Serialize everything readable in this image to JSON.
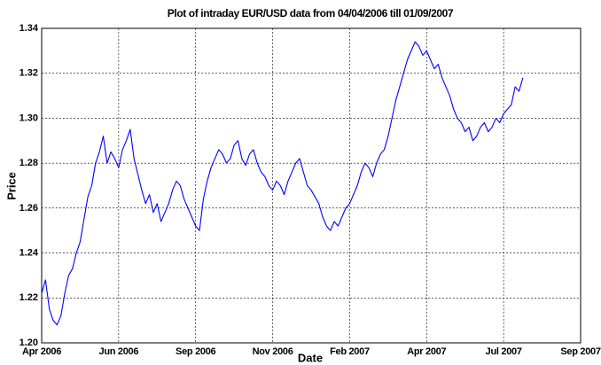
{
  "chart_data": {
    "type": "line",
    "title": "Plot of intraday EUR/USD data from 04/04/2006 till 01/09/2007",
    "x_label": "Date",
    "y_label": "Price",
    "categories": [
      "Apr 2006",
      null,
      null,
      null,
      null,
      null,
      null,
      null,
      null,
      null,
      null,
      null,
      null,
      null,
      null,
      null,
      null,
      null,
      null,
      null,
      "Jun 2006",
      null,
      null,
      null,
      null,
      null,
      null,
      null,
      null,
      null,
      null,
      null,
      null,
      null,
      null,
      null,
      null,
      null,
      null,
      null,
      "Sep 2006",
      null,
      null,
      null,
      null,
      null,
      null,
      null,
      null,
      null,
      null,
      null,
      null,
      null,
      null,
      null,
      null,
      null,
      null,
      null,
      "Nov 2006",
      null,
      null,
      null,
      null,
      null,
      null,
      null,
      null,
      null,
      null,
      null,
      null,
      null,
      null,
      null,
      null,
      null,
      null,
      null,
      "Feb 2007",
      null,
      null,
      null,
      null,
      null,
      null,
      null,
      null,
      null,
      null,
      null,
      null,
      null,
      null,
      null,
      null,
      null,
      null,
      null,
      "Apr 2007",
      null,
      null,
      null,
      null,
      null,
      null,
      null,
      null,
      null,
      null,
      null,
      null,
      null,
      null,
      null,
      null,
      null,
      null,
      null,
      "Jul 2007",
      null,
      null,
      null,
      null,
      null,
      null,
      null,
      null,
      null,
      null,
      null,
      null,
      null,
      null,
      null,
      null,
      null,
      null,
      null,
      "Sep 2007"
    ],
    "values": [
      1.222,
      1.228,
      1.215,
      1.21,
      1.208,
      1.212,
      1.222,
      1.23,
      1.233,
      1.24,
      1.245,
      1.255,
      1.265,
      1.27,
      1.28,
      1.285,
      1.292,
      1.28,
      1.285,
      1.282,
      1.278,
      1.286,
      1.29,
      1.295,
      1.282,
      1.275,
      1.268,
      1.262,
      1.266,
      1.258,
      1.262,
      1.254,
      1.258,
      1.262,
      1.268,
      1.272,
      1.27,
      1.264,
      1.26,
      1.256,
      1.252,
      1.25,
      1.264,
      1.272,
      1.278,
      1.282,
      1.286,
      1.284,
      1.28,
      1.282,
      1.288,
      1.29,
      1.282,
      1.279,
      1.284,
      1.286,
      1.28,
      1.276,
      1.274,
      1.27,
      1.268,
      1.272,
      1.27,
      1.266,
      1.272,
      1.276,
      1.28,
      1.282,
      1.276,
      1.27,
      1.268,
      1.265,
      1.262,
      1.256,
      1.252,
      1.25,
      1.254,
      1.252,
      1.256,
      1.26,
      1.262,
      1.266,
      1.27,
      1.276,
      1.28,
      1.278,
      1.274,
      1.28,
      1.284,
      1.286,
      1.292,
      1.3,
      1.308,
      1.314,
      1.32,
      1.326,
      1.33,
      1.334,
      1.332,
      1.328,
      1.33,
      1.326,
      1.322,
      1.324,
      1.318,
      1.314,
      1.31,
      1.304,
      1.3,
      1.298,
      1.294,
      1.296,
      1.29,
      1.292,
      1.296,
      1.298,
      1.294,
      1.296,
      1.3,
      1.298,
      1.302,
      1.304,
      1.306,
      1.314,
      1.312,
      1.318,
      null,
      null,
      null,
      null,
      null,
      null,
      null,
      null,
      null,
      null,
      null,
      null,
      null,
      null,
      null
    ],
    "color": "#0000ff",
    "ylim": [
      1.2,
      1.34
    ],
    "yticks": [
      {
        "value": 1.2,
        "label": "1.20"
      },
      1.22,
      1.24,
      1.26,
      1.28,
      {
        "value": 1.3,
        "label": "1.30"
      },
      1.32,
      1.34
    ],
    "grid": true
  }
}
